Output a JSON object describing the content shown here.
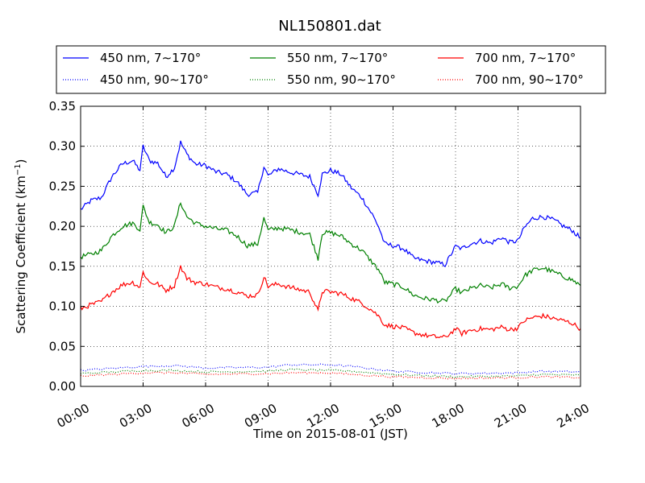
{
  "chart_data": {
    "type": "line",
    "title": "NL150801.dat",
    "xlabel": "Time on 2015-08-01 (JST)",
    "ylabel_main": "Scattering Coefficient (km",
    "ylabel_sup": "−1",
    "ylabel_close": ")",
    "x_ticks": [
      "00:00",
      "03:00",
      "06:00",
      "09:00",
      "12:00",
      "15:00",
      "18:00",
      "21:00",
      "24:00"
    ],
    "y_ticks": [
      "0.00",
      "0.05",
      "0.10",
      "0.15",
      "0.20",
      "0.25",
      "0.30",
      "0.35"
    ],
    "xlim": [
      0,
      24
    ],
    "ylim": [
      0,
      0.35
    ],
    "grid": true,
    "legend_position": "top",
    "series": [
      {
        "name": "450 nm, 7∼170°",
        "color": "#0000ff",
        "style": "solid",
        "points": [
          [
            0,
            0.221
          ],
          [
            0.5,
            0.232
          ],
          [
            1,
            0.236
          ],
          [
            1.5,
            0.262
          ],
          [
            2,
            0.278
          ],
          [
            2.5,
            0.282
          ],
          [
            2.85,
            0.27
          ],
          [
            3.0,
            0.3
          ],
          [
            3.3,
            0.282
          ],
          [
            3.7,
            0.279
          ],
          [
            4.1,
            0.262
          ],
          [
            4.5,
            0.273
          ],
          [
            4.8,
            0.305
          ],
          [
            5.1,
            0.29
          ],
          [
            5.5,
            0.278
          ],
          [
            6,
            0.276
          ],
          [
            6.5,
            0.268
          ],
          [
            7,
            0.265
          ],
          [
            7.5,
            0.256
          ],
          [
            8,
            0.24
          ],
          [
            8.5,
            0.242
          ],
          [
            8.8,
            0.275
          ],
          [
            9,
            0.263
          ],
          [
            9.5,
            0.272
          ],
          [
            10,
            0.268
          ],
          [
            10.5,
            0.265
          ],
          [
            11,
            0.262
          ],
          [
            11.4,
            0.24
          ],
          [
            11.6,
            0.265
          ],
          [
            12,
            0.27
          ],
          [
            12.5,
            0.265
          ],
          [
            13,
            0.248
          ],
          [
            13.5,
            0.236
          ],
          [
            14,
            0.215
          ],
          [
            14.3,
            0.2
          ],
          [
            14.6,
            0.178
          ],
          [
            15,
            0.176
          ],
          [
            15.5,
            0.172
          ],
          [
            16,
            0.16
          ],
          [
            16.5,
            0.157
          ],
          [
            17,
            0.155
          ],
          [
            17.5,
            0.152
          ],
          [
            18,
            0.175
          ],
          [
            18.3,
            0.172
          ],
          [
            18.7,
            0.178
          ],
          [
            19.2,
            0.182
          ],
          [
            19.7,
            0.179
          ],
          [
            20.2,
            0.186
          ],
          [
            20.6,
            0.18
          ],
          [
            21,
            0.182
          ],
          [
            21.3,
            0.198
          ],
          [
            21.7,
            0.21
          ],
          [
            22.2,
            0.212
          ],
          [
            22.7,
            0.208
          ],
          [
            23.2,
            0.2
          ],
          [
            23.6,
            0.195
          ],
          [
            24,
            0.185
          ]
        ]
      },
      {
        "name": "550 nm, 7∼170°",
        "color": "#008000",
        "style": "solid",
        "points": [
          [
            0,
            0.162
          ],
          [
            0.5,
            0.165
          ],
          [
            1,
            0.17
          ],
          [
            1.5,
            0.188
          ],
          [
            2,
            0.2
          ],
          [
            2.5,
            0.204
          ],
          [
            2.85,
            0.196
          ],
          [
            3.0,
            0.225
          ],
          [
            3.3,
            0.205
          ],
          [
            3.7,
            0.202
          ],
          [
            4.1,
            0.192
          ],
          [
            4.5,
            0.2
          ],
          [
            4.8,
            0.23
          ],
          [
            5.1,
            0.212
          ],
          [
            5.5,
            0.204
          ],
          [
            6,
            0.2
          ],
          [
            6.5,
            0.197
          ],
          [
            7,
            0.195
          ],
          [
            7.5,
            0.188
          ],
          [
            8,
            0.176
          ],
          [
            8.5,
            0.178
          ],
          [
            8.8,
            0.21
          ],
          [
            9,
            0.195
          ],
          [
            9.5,
            0.198
          ],
          [
            10,
            0.196
          ],
          [
            10.5,
            0.193
          ],
          [
            11,
            0.19
          ],
          [
            11.4,
            0.16
          ],
          [
            11.6,
            0.192
          ],
          [
            12,
            0.192
          ],
          [
            12.5,
            0.188
          ],
          [
            13,
            0.178
          ],
          [
            13.5,
            0.17
          ],
          [
            14,
            0.155
          ],
          [
            14.3,
            0.146
          ],
          [
            14.6,
            0.13
          ],
          [
            15,
            0.128
          ],
          [
            15.5,
            0.124
          ],
          [
            16,
            0.114
          ],
          [
            16.5,
            0.11
          ],
          [
            17,
            0.108
          ],
          [
            17.5,
            0.106
          ],
          [
            18,
            0.122
          ],
          [
            18.3,
            0.117
          ],
          [
            18.7,
            0.122
          ],
          [
            19.2,
            0.126
          ],
          [
            19.7,
            0.123
          ],
          [
            20.2,
            0.128
          ],
          [
            20.6,
            0.123
          ],
          [
            21,
            0.125
          ],
          [
            21.3,
            0.138
          ],
          [
            21.7,
            0.145
          ],
          [
            22.2,
            0.148
          ],
          [
            22.7,
            0.143
          ],
          [
            23.2,
            0.137
          ],
          [
            23.6,
            0.133
          ],
          [
            24,
            0.126
          ]
        ]
      },
      {
        "name": "700 nm, 7∼170°",
        "color": "#ff0000",
        "style": "solid",
        "points": [
          [
            0,
            0.097
          ],
          [
            0.5,
            0.102
          ],
          [
            1,
            0.106
          ],
          [
            1.5,
            0.118
          ],
          [
            2,
            0.127
          ],
          [
            2.5,
            0.13
          ],
          [
            2.85,
            0.124
          ],
          [
            3.0,
            0.143
          ],
          [
            3.3,
            0.13
          ],
          [
            3.7,
            0.128
          ],
          [
            4.1,
            0.12
          ],
          [
            4.5,
            0.126
          ],
          [
            4.8,
            0.15
          ],
          [
            5.1,
            0.135
          ],
          [
            5.5,
            0.13
          ],
          [
            6,
            0.128
          ],
          [
            6.5,
            0.124
          ],
          [
            7,
            0.122
          ],
          [
            7.5,
            0.118
          ],
          [
            8,
            0.113
          ],
          [
            8.5,
            0.114
          ],
          [
            8.8,
            0.137
          ],
          [
            9,
            0.125
          ],
          [
            9.5,
            0.128
          ],
          [
            10,
            0.124
          ],
          [
            10.5,
            0.121
          ],
          [
            11,
            0.118
          ],
          [
            11.4,
            0.094
          ],
          [
            11.6,
            0.119
          ],
          [
            12,
            0.118
          ],
          [
            12.5,
            0.116
          ],
          [
            13,
            0.11
          ],
          [
            13.5,
            0.104
          ],
          [
            14,
            0.095
          ],
          [
            14.3,
            0.088
          ],
          [
            14.6,
            0.077
          ],
          [
            15,
            0.075
          ],
          [
            15.5,
            0.073
          ],
          [
            16,
            0.067
          ],
          [
            16.5,
            0.064
          ],
          [
            17,
            0.062
          ],
          [
            17.5,
            0.061
          ],
          [
            18,
            0.072
          ],
          [
            18.3,
            0.066
          ],
          [
            18.7,
            0.07
          ],
          [
            19.2,
            0.072
          ],
          [
            19.7,
            0.071
          ],
          [
            20.2,
            0.074
          ],
          [
            20.6,
            0.071
          ],
          [
            21,
            0.073
          ],
          [
            21.3,
            0.082
          ],
          [
            21.7,
            0.086
          ],
          [
            22.2,
            0.088
          ],
          [
            22.7,
            0.085
          ],
          [
            23.2,
            0.082
          ],
          [
            23.6,
            0.079
          ],
          [
            24,
            0.072
          ]
        ]
      },
      {
        "name": "450 nm, 90∼170°",
        "color": "#0000ff",
        "style": "dotted",
        "points": [
          [
            0,
            0.02
          ],
          [
            3,
            0.025
          ],
          [
            4.5,
            0.026
          ],
          [
            6,
            0.023
          ],
          [
            9,
            0.024
          ],
          [
            10,
            0.027
          ],
          [
            12,
            0.027
          ],
          [
            13,
            0.025
          ],
          [
            15,
            0.019
          ],
          [
            18,
            0.016
          ],
          [
            21,
            0.017
          ],
          [
            22,
            0.019
          ],
          [
            24,
            0.018
          ]
        ]
      },
      {
        "name": "550 nm, 90∼170°",
        "color": "#008000",
        "style": "dotted",
        "points": [
          [
            0,
            0.016
          ],
          [
            3,
            0.02
          ],
          [
            4.5,
            0.02
          ],
          [
            6,
            0.018
          ],
          [
            9,
            0.019
          ],
          [
            10,
            0.021
          ],
          [
            12,
            0.02
          ],
          [
            13,
            0.019
          ],
          [
            15,
            0.015
          ],
          [
            18,
            0.012
          ],
          [
            21,
            0.013
          ],
          [
            22,
            0.015
          ],
          [
            24,
            0.014
          ]
        ]
      },
      {
        "name": "700 nm, 90∼170°",
        "color": "#ff0000",
        "style": "dotted",
        "points": [
          [
            0,
            0.013
          ],
          [
            3,
            0.017
          ],
          [
            4.5,
            0.017
          ],
          [
            6,
            0.015
          ],
          [
            9,
            0.016
          ],
          [
            10,
            0.017
          ],
          [
            12,
            0.017
          ],
          [
            13,
            0.015
          ],
          [
            15,
            0.012
          ],
          [
            18,
            0.01
          ],
          [
            21,
            0.011
          ],
          [
            22,
            0.012
          ],
          [
            24,
            0.011
          ]
        ]
      }
    ]
  }
}
